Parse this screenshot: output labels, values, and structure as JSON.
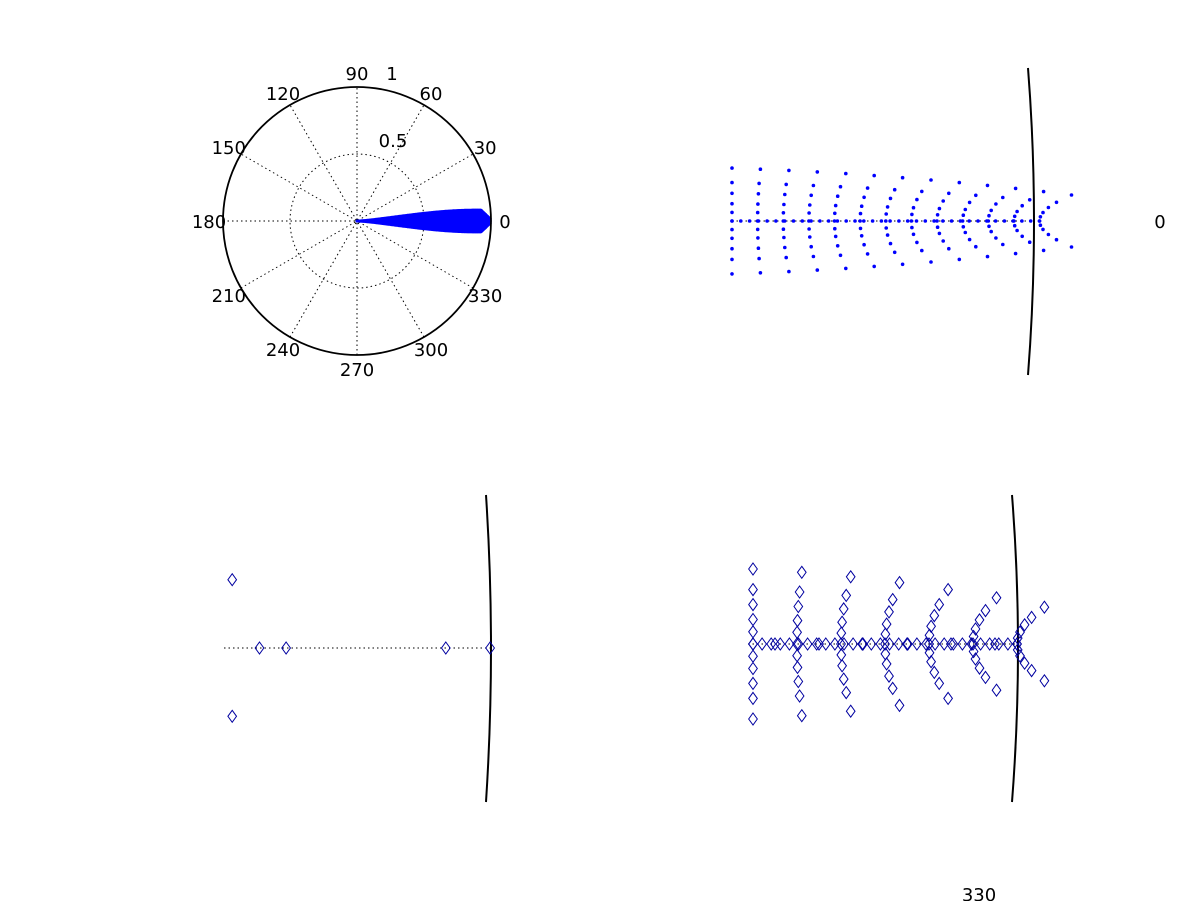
{
  "chart_data": [
    {
      "type": "scatter",
      "projection": "polar",
      "panel": "top-left",
      "marker": "dot",
      "color": "#0000ff",
      "r_max": 1,
      "r_ticks": [
        "0.5",
        "1"
      ],
      "theta_ticks": [
        "0",
        "30",
        "60",
        "90",
        "120",
        "150",
        "180",
        "210",
        "240",
        "270",
        "300",
        "330"
      ],
      "grid": true,
      "note": "Dense dot cloud forming a narrow lobe along 0° from r = 0 to r ≈ 1"
    },
    {
      "type": "scatter",
      "projection": "polar",
      "panel": "top-right",
      "marker": "dot",
      "color": "#0000ff",
      "theta_ticks": [
        "0"
      ],
      "rows_deg": [
        15,
        11,
        8,
        5,
        2.5,
        0,
        -2.5,
        -5,
        -8,
        -11,
        -15
      ],
      "x_stations": [
        0.7,
        0.725,
        0.75,
        0.775,
        0.8,
        0.825,
        0.85,
        0.875,
        0.9,
        0.925,
        0.95,
        0.975,
        1.0
      ],
      "axis_line_at_deg": 0
    },
    {
      "type": "scatter",
      "projection": "polar",
      "panel": "bottom-left",
      "marker": "diamond",
      "color": "#0000a0",
      "points": [
        {
          "r": 0.72,
          "theta_deg": 9.9
        },
        {
          "r": 0.72,
          "theta_deg": -9.9
        },
        {
          "r": 0.74,
          "theta_deg": 0
        },
        {
          "r": 0.77,
          "theta_deg": 0
        },
        {
          "r": 0.95,
          "theta_deg": 0
        },
        {
          "r": 1.0,
          "theta_deg": 0
        }
      ]
    },
    {
      "type": "scatter",
      "projection": "polar",
      "panel": "bottom-right",
      "marker": "diamond",
      "color": "#0000a0",
      "theta_ticks": [
        "330"
      ],
      "rows_deg": [
        15,
        11,
        8,
        5,
        2.5,
        0,
        -2.5,
        -5,
        -8,
        -11,
        -15
      ],
      "x_stations": [
        0.7,
        0.725,
        0.75,
        0.775,
        0.8,
        0.825,
        0.85,
        0.875,
        0.9,
        0.925,
        0.95,
        0.975,
        1.0
      ],
      "axis_line_at_deg": 0
    }
  ]
}
